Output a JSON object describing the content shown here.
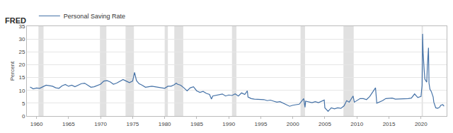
{
  "chart_data": {
    "type": "line",
    "logo": "FRED",
    "y_label": "Percent",
    "legend": "top-left",
    "grid": true,
    "xlim": [
      1958.5,
      2024
    ],
    "xticks": [
      1960,
      1965,
      1970,
      1975,
      1980,
      1985,
      1990,
      1995,
      2000,
      2005,
      2010,
      2015,
      2020
    ],
    "ylim": [
      0,
      35
    ],
    "yticks": [
      0,
      5,
      10,
      15,
      20,
      25,
      30,
      35
    ],
    "recessions": [
      [
        1960.3,
        1961.1
      ],
      [
        1969.9,
        1970.9
      ],
      [
        1973.9,
        1975.2
      ],
      [
        1980.0,
        1980.5
      ],
      [
        1981.5,
        1982.9
      ],
      [
        1990.5,
        1991.2
      ],
      [
        2001.2,
        2001.9
      ],
      [
        2007.9,
        2009.5
      ],
      [
        2020.1,
        2020.3
      ]
    ],
    "x": [
      1959.0,
      1959.5,
      1960.0,
      1960.5,
      1961.0,
      1961.5,
      1962.0,
      1962.5,
      1963.0,
      1963.5,
      1964.0,
      1964.5,
      1965.0,
      1965.5,
      1966.0,
      1966.5,
      1967.0,
      1967.5,
      1968.0,
      1968.5,
      1969.0,
      1969.5,
      1970.0,
      1970.5,
      1971.0,
      1971.5,
      1972.0,
      1972.5,
      1973.0,
      1973.5,
      1974.0,
      1974.5,
      1975.0,
      1975.3,
      1975.6,
      1976.0,
      1976.5,
      1977.0,
      1977.5,
      1978.0,
      1978.5,
      1979.0,
      1979.5,
      1980.0,
      1980.5,
      1981.0,
      1981.5,
      1981.8,
      1982.0,
      1982.5,
      1983.0,
      1983.5,
      1984.0,
      1984.5,
      1985.0,
      1985.5,
      1986.0,
      1986.5,
      1987.0,
      1987.3,
      1987.5,
      1988.0,
      1988.5,
      1989.0,
      1989.5,
      1990.0,
      1990.5,
      1991.0,
      1991.5,
      1992.0,
      1992.5,
      1992.9,
      1993.0,
      1993.5,
      1994.0,
      1994.5,
      1995.0,
      1995.5,
      1996.0,
      1996.5,
      1997.0,
      1997.5,
      1998.0,
      1998.5,
      1999.0,
      1999.5,
      2000.0,
      2000.5,
      2001.0,
      2001.7,
      2001.9,
      2002.0,
      2002.5,
      2003.0,
      2003.5,
      2004.0,
      2004.9,
      2005.0,
      2005.5,
      2006.0,
      2006.5,
      2007.0,
      2007.5,
      2008.0,
      2008.4,
      2008.8,
      2009.0,
      2009.4,
      2009.6,
      2010.0,
      2010.5,
      2011.0,
      2011.5,
      2012.0,
      2012.9,
      2013.1,
      2013.5,
      2014.0,
      2014.5,
      2015.0,
      2015.5,
      2016.0,
      2016.5,
      2017.0,
      2017.5,
      2018.0,
      2018.5,
      2019.0,
      2019.5,
      2020.0,
      2020.17,
      2020.25,
      2020.33,
      2020.42,
      2020.5,
      2020.6,
      2020.75,
      2020.9,
      2021.0,
      2021.17,
      2021.25,
      2021.4,
      2021.6,
      2021.9,
      2022.0,
      2022.3,
      2022.6,
      2022.9,
      2023.1,
      2023.4,
      2023.6
    ],
    "series": [
      {
        "name": "Personal Saving Rate",
        "color": "#4572a7",
        "values": [
          11.3,
          10.6,
          10.9,
          10.8,
          11.4,
          12.0,
          11.8,
          11.6,
          11.0,
          10.8,
          11.8,
          12.3,
          11.6,
          12.0,
          11.4,
          12.0,
          12.6,
          12.8,
          12.0,
          11.2,
          11.4,
          12.0,
          12.4,
          13.6,
          13.8,
          13.3,
          12.4,
          12.8,
          13.4,
          14.2,
          13.6,
          13.0,
          13.6,
          17.0,
          13.8,
          12.6,
          12.0,
          11.2,
          11.4,
          11.6,
          11.4,
          11.2,
          10.8,
          10.8,
          11.6,
          11.6,
          12.2,
          12.8,
          12.4,
          12.0,
          11.0,
          9.8,
          11.0,
          11.4,
          9.8,
          9.2,
          9.6,
          8.8,
          8.4,
          6.6,
          7.8,
          8.0,
          8.4,
          8.6,
          7.8,
          8.2,
          8.0,
          8.6,
          7.8,
          9.0,
          8.4,
          9.8,
          7.4,
          6.8,
          6.6,
          6.6,
          6.6,
          6.4,
          6.0,
          6.2,
          5.8,
          5.4,
          5.6,
          5.0,
          4.4,
          3.8,
          4.2,
          4.4,
          4.6,
          6.8,
          3.4,
          5.8,
          5.4,
          5.2,
          5.6,
          5.2,
          6.2,
          3.2,
          1.8,
          3.2,
          2.8,
          3.2,
          3.0,
          4.0,
          6.0,
          5.4,
          6.2,
          7.8,
          5.4,
          6.0,
          6.8,
          6.8,
          6.4,
          7.6,
          11.0,
          5.0,
          5.4,
          6.0,
          6.8,
          7.0,
          7.0,
          6.6,
          6.6,
          6.6,
          6.8,
          6.8,
          7.0,
          8.6,
          7.2,
          7.6,
          12.0,
          32.0,
          24.6,
          19.2,
          17.8,
          14.4,
          13.6,
          13.2,
          19.8,
          26.6,
          12.8,
          10.4,
          9.6,
          7.4,
          5.4,
          3.2,
          3.0,
          3.4,
          4.2,
          4.4,
          3.8
        ]
      }
    ]
  }
}
